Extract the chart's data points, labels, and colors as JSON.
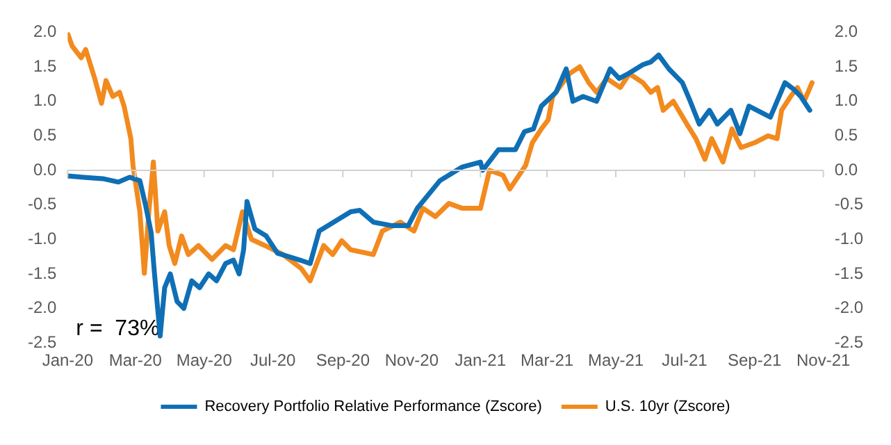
{
  "chart_data": {
    "type": "line",
    "annotations": [
      "r =  73%"
    ],
    "xlim": [
      "2020-01-01",
      "2021-11-01"
    ],
    "xticks": [
      {
        "value": "2020-01-01",
        "label": "Jan-20"
      },
      {
        "value": "2020-03-01",
        "label": "Mar-20"
      },
      {
        "value": "2020-05-01",
        "label": "May-20"
      },
      {
        "value": "2020-07-01",
        "label": "Jul-20"
      },
      {
        "value": "2020-09-01",
        "label": "Sep-20"
      },
      {
        "value": "2020-11-01",
        "label": "Nov-20"
      },
      {
        "value": "2021-01-01",
        "label": "Jan-21"
      },
      {
        "value": "2021-03-01",
        "label": "Mar-21"
      },
      {
        "value": "2021-05-01",
        "label": "May-21"
      },
      {
        "value": "2021-07-01",
        "label": "Jul-21"
      },
      {
        "value": "2021-09-01",
        "label": "Sep-21"
      },
      {
        "value": "2021-11-01",
        "label": "Nov-21"
      }
    ],
    "ylim": [
      -2.5,
      2
    ],
    "yticks": [
      {
        "value": -2.5,
        "label": "-2.5"
      },
      {
        "value": -2,
        "label": "-2.0"
      },
      {
        "value": -1.5,
        "label": "-1.5"
      },
      {
        "value": -1,
        "label": "-1.0"
      },
      {
        "value": -0.5,
        "label": "-0.5"
      },
      {
        "value": 0,
        "label": "0.0"
      },
      {
        "value": 0.5,
        "label": "0.5"
      },
      {
        "value": 1,
        "label": "1.0"
      },
      {
        "value": 1.5,
        "label": "1.5"
      },
      {
        "value": 2,
        "label": "2.0"
      }
    ],
    "y2lim": [
      -2.5,
      2
    ],
    "y2ticks": [
      {
        "value": -2.5,
        "label": "-2.5"
      },
      {
        "value": -2,
        "label": "-2.0"
      },
      {
        "value": -1.5,
        "label": "-1.5"
      },
      {
        "value": -1,
        "label": "-1.0"
      },
      {
        "value": -0.5,
        "label": "-0.5"
      },
      {
        "value": 0,
        "label": "0.0"
      },
      {
        "value": 0.5,
        "label": "0.5"
      },
      {
        "value": 1,
        "label": "1.0"
      },
      {
        "value": 1.5,
        "label": "1.5"
      },
      {
        "value": 2,
        "label": "2.0"
      }
    ],
    "legend": "bottom",
    "marker": "none",
    "line_style": "solid",
    "series": [
      {
        "name": "Recovery Portfolio Relative Performance (Zscore)",
        "color": "#0f6fb5",
        "x": [
          "2020-01-01",
          "2020-01-15",
          "2020-02-01",
          "2020-02-15",
          "2020-02-25",
          "2020-03-05",
          "2020-03-10",
          "2020-03-15",
          "2020-03-18",
          "2020-03-23",
          "2020-03-27",
          "2020-04-01",
          "2020-04-07",
          "2020-04-13",
          "2020-04-20",
          "2020-04-27",
          "2020-05-05",
          "2020-05-12",
          "2020-05-20",
          "2020-05-27",
          "2020-06-01",
          "2020-06-05",
          "2020-06-08",
          "2020-06-15",
          "2020-06-25",
          "2020-07-05",
          "2020-07-15",
          "2020-07-25",
          "2020-08-03",
          "2020-08-11",
          "2020-09-08",
          "2020-09-16",
          "2020-09-28",
          "2020-10-14",
          "2020-10-29",
          "2020-11-06",
          "2020-11-26",
          "2020-12-16",
          "2021-01-01",
          "2021-01-03",
          "2021-01-17",
          "2021-02-01",
          "2021-02-09",
          "2021-02-17",
          "2021-02-24",
          "2021-03-09",
          "2021-03-18",
          "2021-03-24",
          "2021-04-02",
          "2021-04-14",
          "2021-04-26",
          "2021-05-04",
          "2021-05-12",
          "2021-05-25",
          "2021-06-01",
          "2021-06-08",
          "2021-06-17",
          "2021-06-29",
          "2021-07-06",
          "2021-07-14",
          "2021-07-23",
          "2021-07-30",
          "2021-08-11",
          "2021-08-19",
          "2021-08-27",
          "2021-09-08",
          "2021-09-15",
          "2021-09-28",
          "2021-10-06",
          "2021-10-12",
          "2021-10-20"
        ],
        "values": [
          -0.08,
          -0.1,
          -0.12,
          -0.17,
          -0.1,
          -0.15,
          -0.5,
          -0.9,
          -1.5,
          -2.4,
          -1.7,
          -1.5,
          -1.9,
          -2.0,
          -1.6,
          -1.7,
          -1.5,
          -1.6,
          -1.35,
          -1.3,
          -1.5,
          -1.15,
          -0.45,
          -0.85,
          -0.95,
          -1.2,
          -1.25,
          -1.3,
          -1.35,
          -0.88,
          -0.6,
          -0.58,
          -0.75,
          -0.8,
          -0.8,
          -0.55,
          -0.15,
          0.05,
          0.12,
          0.0,
          0.3,
          0.3,
          0.56,
          0.6,
          0.93,
          1.13,
          1.47,
          1.0,
          1.07,
          1.0,
          1.47,
          1.33,
          1.4,
          1.53,
          1.57,
          1.67,
          1.47,
          1.27,
          1.0,
          0.67,
          0.87,
          0.67,
          0.87,
          0.53,
          0.93,
          0.83,
          0.77,
          1.27,
          1.17,
          1.07,
          0.87
        ]
      },
      {
        "name": "U.S. 10yr (Zscore)",
        "color": "#f28a1e",
        "axis": "y2",
        "x": [
          "2020-01-01",
          "2020-01-05",
          "2020-01-13",
          "2020-01-17",
          "2020-01-25",
          "2020-01-31",
          "2020-02-04",
          "2020-02-10",
          "2020-02-16",
          "2020-02-20",
          "2020-02-26",
          "2020-02-28",
          "2020-03-05",
          "2020-03-09",
          "2020-03-13",
          "2020-03-17",
          "2020-03-21",
          "2020-03-27",
          "2020-03-31",
          "2020-04-05",
          "2020-04-11",
          "2020-04-17",
          "2020-04-26",
          "2020-05-08",
          "2020-05-20",
          "2020-05-27",
          "2020-06-04",
          "2020-06-12",
          "2020-06-24",
          "2020-07-10",
          "2020-07-26",
          "2020-08-03",
          "2020-08-15",
          "2020-08-23",
          "2020-08-31",
          "2020-09-08",
          "2020-09-28",
          "2020-10-06",
          "2020-10-22",
          "2020-11-03",
          "2020-11-11",
          "2020-11-22",
          "2020-12-04",
          "2020-12-16",
          "2021-01-01",
          "2021-01-09",
          "2021-01-21",
          "2021-01-27",
          "2021-02-10",
          "2021-02-16",
          "2021-02-24",
          "2021-03-02",
          "2021-03-06",
          "2021-03-21",
          "2021-03-30",
          "2021-04-07",
          "2021-04-14",
          "2021-04-23",
          "2021-05-05",
          "2021-05-13",
          "2021-05-25",
          "2021-06-01",
          "2021-06-07",
          "2021-06-12",
          "2021-06-21",
          "2021-07-03",
          "2021-07-11",
          "2021-07-19",
          "2021-07-25",
          "2021-08-04",
          "2021-08-12",
          "2021-08-20",
          "2021-09-01",
          "2021-09-13",
          "2021-09-21",
          "2021-09-25",
          "2021-10-03",
          "2021-10-09",
          "2021-10-15",
          "2021-10-22"
        ],
        "values": [
          1.98,
          1.8,
          1.63,
          1.75,
          1.33,
          0.97,
          1.3,
          1.07,
          1.13,
          0.93,
          0.46,
          0.06,
          -0.6,
          -1.49,
          -0.6,
          0.12,
          -0.88,
          -0.6,
          -1.09,
          -1.35,
          -0.95,
          -1.22,
          -1.09,
          -1.29,
          -1.09,
          -1.15,
          -0.6,
          -1.0,
          -1.09,
          -1.22,
          -1.42,
          -1.6,
          -1.09,
          -1.22,
          -1.02,
          -1.15,
          -1.22,
          -0.88,
          -0.75,
          -0.88,
          -0.55,
          -0.67,
          -0.48,
          -0.55,
          -0.55,
          0.0,
          -0.07,
          -0.27,
          0.07,
          0.4,
          0.6,
          0.73,
          1.07,
          1.4,
          1.5,
          1.27,
          1.13,
          1.33,
          1.2,
          1.4,
          1.27,
          1.13,
          1.2,
          0.87,
          1.0,
          0.67,
          0.46,
          0.16,
          0.46,
          0.12,
          0.6,
          0.33,
          0.4,
          0.5,
          0.46,
          0.87,
          1.07,
          1.2,
          1.0,
          1.27
        ]
      }
    ]
  }
}
